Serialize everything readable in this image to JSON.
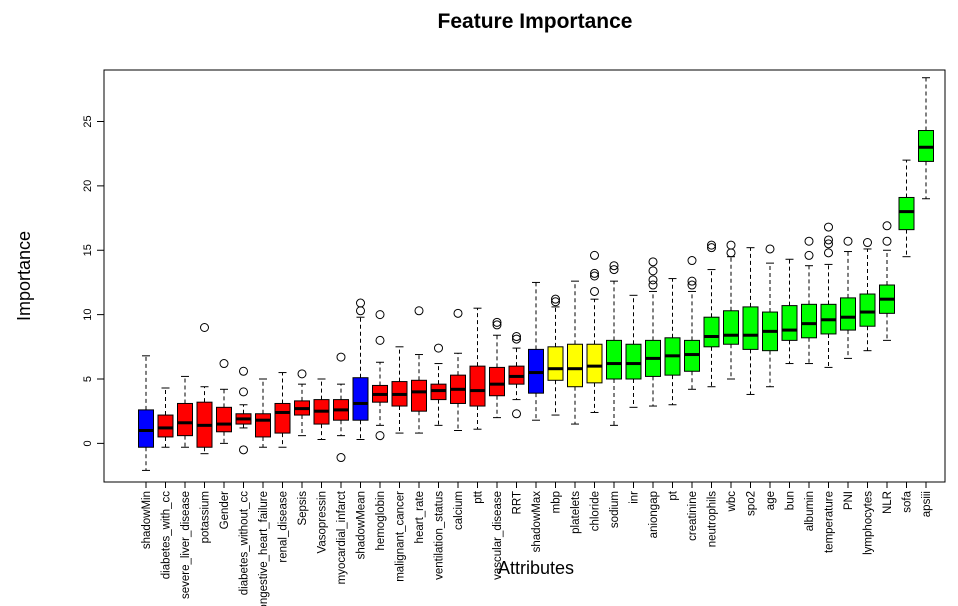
{
  "chart_data": {
    "type": "boxplot",
    "title": "Feature Importance",
    "xlabel": "Attributes",
    "ylabel": "Importance",
    "ylim": [
      -3,
      29
    ],
    "yticks": [
      0,
      5,
      10,
      15,
      20,
      25
    ],
    "colors": {
      "shadow": "#0000ff",
      "rejected": "#ff0000",
      "tentative": "#ffff00",
      "confirmed": "#00ff00"
    },
    "boxes": [
      {
        "label": "shadowMin",
        "status": "shadow",
        "min": -2.1,
        "q1": -0.3,
        "median": 1.0,
        "q3": 2.6,
        "max": 6.8,
        "outliers": []
      },
      {
        "label": "diabetes_with_cc",
        "status": "rejected",
        "min": -0.3,
        "q1": 0.5,
        "median": 1.2,
        "q3": 2.2,
        "max": 4.3,
        "outliers": []
      },
      {
        "label": "severe_liver_disease",
        "status": "rejected",
        "min": -0.3,
        "q1": 0.6,
        "median": 1.6,
        "q3": 3.1,
        "max": 5.2,
        "outliers": []
      },
      {
        "label": "potassium",
        "status": "rejected",
        "min": -0.8,
        "q1": -0.3,
        "median": 1.4,
        "q3": 3.2,
        "max": 4.4,
        "outliers": [
          9.0
        ]
      },
      {
        "label": "Gender",
        "status": "rejected",
        "min": 0.0,
        "q1": 0.9,
        "median": 1.5,
        "q3": 2.8,
        "max": 4.2,
        "outliers": [
          6.2
        ]
      },
      {
        "label": "diabetes_without_cc",
        "status": "rejected",
        "min": 1.2,
        "q1": 1.5,
        "median": 1.9,
        "q3": 2.3,
        "max": 3.0,
        "outliers": [
          -0.5,
          4.0,
          5.6
        ]
      },
      {
        "label": "congestive_heart_failure",
        "status": "rejected",
        "min": -0.3,
        "q1": 0.5,
        "median": 1.8,
        "q3": 2.3,
        "max": 5.0,
        "outliers": []
      },
      {
        "label": "renal_disease",
        "status": "rejected",
        "min": -0.3,
        "q1": 0.8,
        "median": 2.4,
        "q3": 3.1,
        "max": 5.5,
        "outliers": []
      },
      {
        "label": "Sepsis",
        "status": "rejected",
        "min": 0.6,
        "q1": 2.2,
        "median": 2.7,
        "q3": 3.3,
        "max": 4.6,
        "outliers": [
          5.4
        ]
      },
      {
        "label": "Vasopressin",
        "status": "rejected",
        "min": 0.3,
        "q1": 1.5,
        "median": 2.5,
        "q3": 3.4,
        "max": 5.0,
        "outliers": []
      },
      {
        "label": "myocardial_infarct",
        "status": "rejected",
        "min": 0.6,
        "q1": 1.8,
        "median": 2.6,
        "q3": 3.4,
        "max": 4.6,
        "outliers": [
          -1.1,
          6.7
        ]
      },
      {
        "label": "shadowMean",
        "status": "shadow",
        "min": 0.3,
        "q1": 1.8,
        "median": 3.1,
        "q3": 5.1,
        "max": 9.8,
        "outliers": [
          10.3,
          10.9
        ]
      },
      {
        "label": "hemoglobin",
        "status": "rejected",
        "min": 1.4,
        "q1": 3.2,
        "median": 3.8,
        "q3": 4.5,
        "max": 6.3,
        "outliers": [
          0.6,
          8.0,
          10.0
        ]
      },
      {
        "label": "malignant_cancer",
        "status": "rejected",
        "min": 0.8,
        "q1": 2.9,
        "median": 3.8,
        "q3": 4.8,
        "max": 7.5,
        "outliers": []
      },
      {
        "label": "heart_rate",
        "status": "rejected",
        "min": 0.8,
        "q1": 2.5,
        "median": 4.0,
        "q3": 4.9,
        "max": 6.9,
        "outliers": [
          10.3
        ]
      },
      {
        "label": "ventilation_status",
        "status": "rejected",
        "min": 1.4,
        "q1": 3.4,
        "median": 4.1,
        "q3": 4.6,
        "max": 6.2,
        "outliers": [
          7.4
        ]
      },
      {
        "label": "calcium",
        "status": "rejected",
        "min": 1.0,
        "q1": 3.1,
        "median": 4.2,
        "q3": 5.3,
        "max": 7.0,
        "outliers": [
          10.1
        ]
      },
      {
        "label": "ptt",
        "status": "rejected",
        "min": 1.1,
        "q1": 2.9,
        "median": 4.1,
        "q3": 6.0,
        "max": 10.5,
        "outliers": []
      },
      {
        "label": "vascular_disease",
        "status": "rejected",
        "min": 2.0,
        "q1": 3.7,
        "median": 4.6,
        "q3": 5.9,
        "max": 8.4,
        "outliers": [
          9.2,
          9.4
        ]
      },
      {
        "label": "RRT",
        "status": "rejected",
        "min": 3.4,
        "q1": 4.6,
        "median": 5.2,
        "q3": 6.0,
        "max": 7.4,
        "outliers": [
          2.3,
          8.1,
          8.3
        ]
      },
      {
        "label": "shadowMax",
        "status": "shadow",
        "min": 1.8,
        "q1": 3.9,
        "median": 5.5,
        "q3": 7.3,
        "max": 12.5,
        "outliers": []
      },
      {
        "label": "mbp",
        "status": "tentative",
        "min": 2.2,
        "q1": 4.9,
        "median": 5.8,
        "q3": 7.5,
        "max": 10.6,
        "outliers": [
          11.0,
          11.2
        ]
      },
      {
        "label": "platelets",
        "status": "tentative",
        "min": 1.5,
        "q1": 4.4,
        "median": 5.8,
        "q3": 7.7,
        "max": 12.6,
        "outliers": []
      },
      {
        "label": "chloride",
        "status": "tentative",
        "min": 2.4,
        "q1": 4.7,
        "median": 6.0,
        "q3": 7.7,
        "max": 11.2,
        "outliers": [
          11.8,
          13.0,
          13.2,
          14.6
        ]
      },
      {
        "label": "sodium",
        "status": "confirmed",
        "min": 1.4,
        "q1": 5.0,
        "median": 6.2,
        "q3": 8.0,
        "max": 12.6,
        "outliers": [
          13.5,
          13.8
        ]
      },
      {
        "label": "inr",
        "status": "confirmed",
        "min": 2.8,
        "q1": 5.0,
        "median": 6.2,
        "q3": 7.7,
        "max": 11.5,
        "outliers": []
      },
      {
        "label": "aniongap",
        "status": "confirmed",
        "min": 2.9,
        "q1": 5.2,
        "median": 6.6,
        "q3": 8.0,
        "max": 11.8,
        "outliers": [
          12.3,
          12.7,
          13.4,
          14.1
        ]
      },
      {
        "label": "pt",
        "status": "confirmed",
        "min": 3.0,
        "q1": 5.3,
        "median": 6.8,
        "q3": 8.2,
        "max": 12.8,
        "outliers": []
      },
      {
        "label": "creatinine",
        "status": "confirmed",
        "min": 4.2,
        "q1": 5.6,
        "median": 6.9,
        "q3": 8.0,
        "max": 11.8,
        "outliers": [
          12.3,
          12.6,
          14.2
        ]
      },
      {
        "label": "neutrophils",
        "status": "confirmed",
        "min": 4.4,
        "q1": 7.5,
        "median": 8.3,
        "q3": 9.8,
        "max": 13.5,
        "outliers": [
          15.2,
          15.4
        ]
      },
      {
        "label": "wbc",
        "status": "confirmed",
        "min": 5.0,
        "q1": 7.7,
        "median": 8.4,
        "q3": 10.3,
        "max": 14.5,
        "outliers": [
          14.8,
          15.4
        ]
      },
      {
        "label": "spo2",
        "status": "confirmed",
        "min": 3.8,
        "q1": 7.3,
        "median": 8.4,
        "q3": 10.6,
        "max": 15.2,
        "outliers": []
      },
      {
        "label": "age",
        "status": "confirmed",
        "min": 4.4,
        "q1": 7.2,
        "median": 8.7,
        "q3": 10.2,
        "max": 14.0,
        "outliers": [
          15.1
        ]
      },
      {
        "label": "bun",
        "status": "confirmed",
        "min": 6.2,
        "q1": 8.0,
        "median": 8.8,
        "q3": 10.7,
        "max": 14.3,
        "outliers": []
      },
      {
        "label": "albumin",
        "status": "confirmed",
        "min": 6.2,
        "q1": 8.2,
        "median": 9.3,
        "q3": 10.8,
        "max": 13.8,
        "outliers": [
          14.6,
          15.7
        ]
      },
      {
        "label": "temperature",
        "status": "confirmed",
        "min": 5.9,
        "q1": 8.5,
        "median": 9.6,
        "q3": 10.8,
        "max": 13.9,
        "outliers": [
          14.8,
          15.5,
          15.8,
          16.8
        ]
      },
      {
        "label": "PNI",
        "status": "confirmed",
        "min": 6.6,
        "q1": 8.8,
        "median": 9.8,
        "q3": 11.3,
        "max": 14.9,
        "outliers": [
          15.7
        ]
      },
      {
        "label": "lymphocytes",
        "status": "confirmed",
        "min": 7.2,
        "q1": 9.1,
        "median": 10.2,
        "q3": 11.6,
        "max": 15.1,
        "outliers": [
          15.6
        ]
      },
      {
        "label": "NLR",
        "status": "confirmed",
        "min": 8.0,
        "q1": 10.1,
        "median": 11.2,
        "q3": 12.3,
        "max": 15.0,
        "outliers": [
          15.7,
          16.9
        ]
      },
      {
        "label": "sofa",
        "status": "confirmed",
        "min": 14.5,
        "q1": 16.6,
        "median": 18.0,
        "q3": 19.1,
        "max": 22.0,
        "outliers": []
      },
      {
        "label": "apsiii",
        "status": "confirmed",
        "min": 19.0,
        "q1": 21.9,
        "median": 23.0,
        "q3": 24.3,
        "max": 28.4,
        "outliers": []
      }
    ]
  }
}
